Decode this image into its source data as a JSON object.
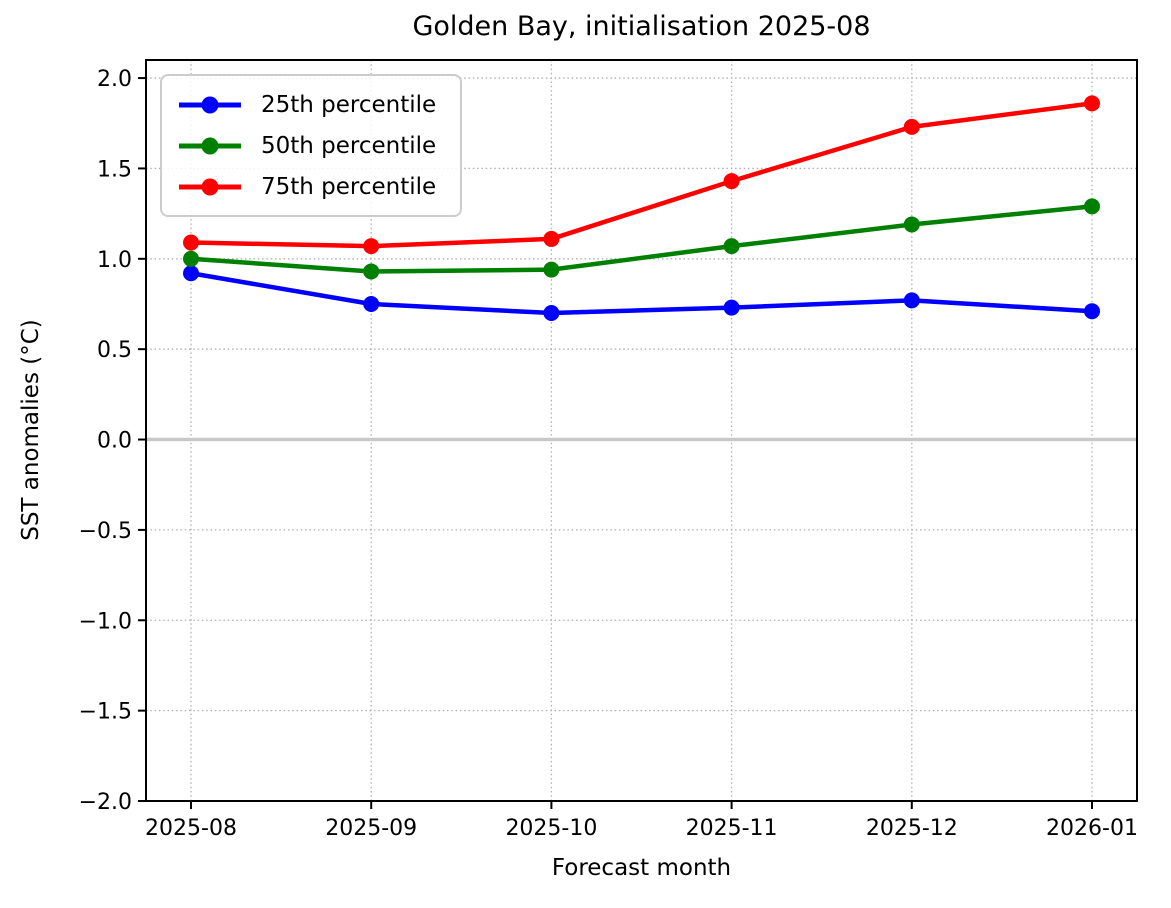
{
  "chart_data": {
    "type": "line",
    "title": "Golden Bay, initialisation 2025-08",
    "xlabel": "Forecast month",
    "ylabel": "SST anomalies (°C)",
    "categories": [
      "2025-08",
      "2025-09",
      "2025-10",
      "2025-11",
      "2025-12",
      "2026-01"
    ],
    "series": [
      {
        "name": "25th percentile",
        "color": "#0000ff",
        "values": [
          0.92,
          0.75,
          0.7,
          0.73,
          0.77,
          0.71
        ]
      },
      {
        "name": "50th percentile",
        "color": "#008000",
        "values": [
          1.0,
          0.93,
          0.94,
          1.07,
          1.19,
          1.29
        ]
      },
      {
        "name": "75th percentile",
        "color": "#ff0000",
        "values": [
          1.09,
          1.07,
          1.11,
          1.43,
          1.73,
          1.86
        ]
      }
    ],
    "ylim": [
      -2.0,
      2.1
    ],
    "yticks": [
      2.0,
      1.5,
      1.0,
      0.5,
      0.0,
      -0.5,
      -1.0,
      -1.5,
      -2.0
    ],
    "ytick_labels": [
      "2.0",
      "1.5",
      "1.0",
      "0.5",
      "0.0",
      "−0.5",
      "−1.0",
      "−1.5",
      "−2.0"
    ],
    "grid": true,
    "gridline_style": "dotted",
    "zero_line": 0.0,
    "legend_position": "upper-left",
    "colors": {
      "grid": "#b0b0b0",
      "zero_line": "#c8c8c8",
      "spine": "#000000",
      "text": "#000000",
      "legend_border": "#cccccc"
    }
  }
}
